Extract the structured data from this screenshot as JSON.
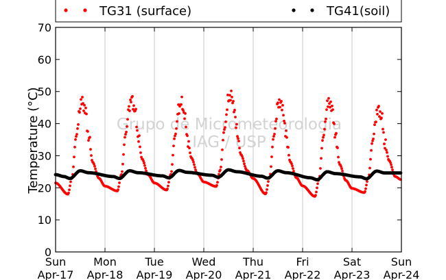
{
  "chart_data": {
    "type": "scatter",
    "title": "",
    "xlabel": "",
    "ylabel": "Temperature (°C)",
    "ylim": [
      0,
      70
    ],
    "yticks": [
      0,
      10,
      20,
      30,
      40,
      50,
      60,
      70
    ],
    "xlim_days": [
      0,
      7
    ],
    "xticks": [
      {
        "day": "Sun",
        "date": "Apr-17"
      },
      {
        "day": "Mon",
        "date": "Apr-18"
      },
      {
        "day": "Tue",
        "date": "Apr-19"
      },
      {
        "day": "Wed",
        "date": "Apr-20"
      },
      {
        "day": "Thu",
        "date": "Apr-21"
      },
      {
        "day": "Fri",
        "date": "Apr-22"
      },
      {
        "day": "Sat",
        "date": "Apr-23"
      },
      {
        "day": "Sun",
        "date": "Apr-24"
      }
    ],
    "grid": "vertical",
    "legend": "top",
    "watermark": [
      "Grupo de Micrometeorologia",
      "IAG / USP"
    ],
    "series": [
      {
        "name": "TG31 (surface)",
        "color": "#ff0000",
        "daily_min": [
          18.0,
          19.0,
          19.3,
          20.4,
          18.1,
          17.3,
          18.5
        ],
        "daily_max": [
          47.0,
          47.5,
          46.5,
          49.0,
          47.0,
          47.0,
          44.5
        ],
        "start_value": 21.5,
        "end_value": 22.5
      },
      {
        "name": "TG41(soil)",
        "color": "#000000",
        "daily_min": [
          22.9,
          22.9,
          23.1,
          23.3,
          23.0,
          22.5,
          22.8
        ],
        "daily_max": [
          25.3,
          25.3,
          25.4,
          25.6,
          25.3,
          25.0,
          25.2
        ],
        "start_value": 24.1,
        "end_value": 23.8
      }
    ]
  }
}
